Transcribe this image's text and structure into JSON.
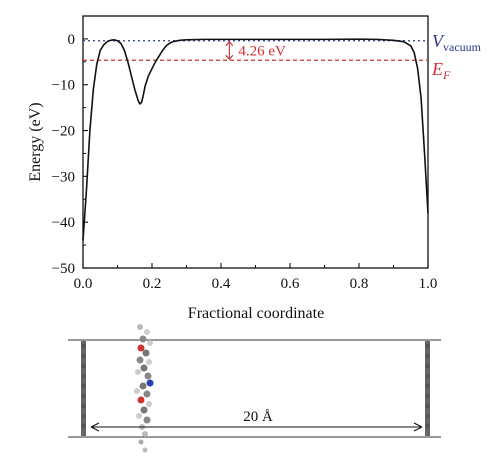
{
  "chart_data": {
    "type": "line",
    "xlabel": "Fractional coordinate",
    "ylabel": "Energy (eV)",
    "xlim": [
      0.0,
      1.0
    ],
    "ylim": [
      -50,
      5
    ],
    "xticks": [
      0.0,
      0.2,
      0.4,
      0.6,
      0.8,
      1.0
    ],
    "xtick_labels": [
      "0.0",
      "0.2",
      "0.4",
      "0.6",
      "0.8",
      "1.0"
    ],
    "yticks": [
      0,
      -10,
      -20,
      -30,
      -40,
      -50
    ],
    "ytick_labels": [
      "0",
      "−10",
      "−20",
      "−30",
      "−40",
      "−50"
    ],
    "grid": false,
    "series": [
      {
        "color": "#111111",
        "x": [
          0.0,
          0.01,
          0.02,
          0.03,
          0.04,
          0.05,
          0.06,
          0.07,
          0.08,
          0.09,
          0.1,
          0.11,
          0.12,
          0.13,
          0.14,
          0.15,
          0.16,
          0.165,
          0.17,
          0.175,
          0.18,
          0.19,
          0.2,
          0.21,
          0.22,
          0.23,
          0.24,
          0.25,
          0.26,
          0.28,
          0.3,
          0.35,
          0.4,
          0.5,
          0.6,
          0.7,
          0.8,
          0.85,
          0.9,
          0.93,
          0.95,
          0.96,
          0.97,
          0.98,
          0.99,
          1.0
        ],
        "y": [
          -44,
          -33,
          -20,
          -11,
          -5.5,
          -2.5,
          -1.3,
          -0.6,
          -0.3,
          -0.2,
          -0.4,
          -1.0,
          -2.5,
          -5.0,
          -8.0,
          -11.0,
          -13.5,
          -14.2,
          -13.8,
          -12.2,
          -10.3,
          -8.0,
          -6.5,
          -5.0,
          -3.8,
          -2.6,
          -1.6,
          -1.0,
          -0.6,
          -0.3,
          -0.2,
          -0.1,
          -0.1,
          -0.1,
          -0.1,
          -0.1,
          -0.05,
          -0.1,
          -0.3,
          -0.6,
          -1.5,
          -3.0,
          -6.5,
          -13.0,
          -25.0,
          -38.0
        ]
      }
    ],
    "reference_lines": [
      {
        "y": -0.4,
        "color": "#2a3a8c",
        "style": "dotted"
      },
      {
        "y": -4.66,
        "color": "#cc3333",
        "style": "dashed"
      }
    ],
    "gap_annotation": {
      "x": 0.43,
      "y_top": -0.4,
      "y_bottom": -4.66,
      "label": "4.26 eV",
      "color": "#cc3333"
    }
  },
  "labels": {
    "v_vacuum_main": "V",
    "v_vacuum_sub": "vacuum",
    "e_fermi_main": "E",
    "e_fermi_sub": "F",
    "distance_label": "20 Å"
  },
  "colors": {
    "vacuum": "#2a3a8c",
    "fermi": "#cc3333",
    "line": "#111111"
  }
}
